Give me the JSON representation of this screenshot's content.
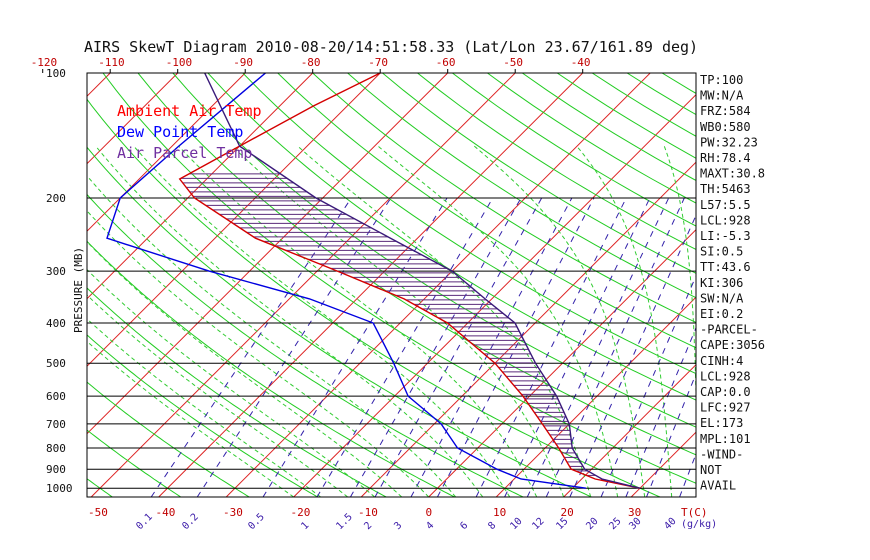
{
  "chart_data": {
    "type": "line",
    "title": "AIRS SkewT Diagram 2010-08-20/14:51:58.33 (Lat/Lon 23.67/161.89 deg)",
    "ylabel": "PRESSURE (MB)",
    "xlabel": "T(C)",
    "mixing_ratio_unit": "(g/kg)",
    "pressure_ticks": [
      100,
      200,
      300,
      400,
      500,
      600,
      700,
      800,
      900,
      1000
    ],
    "temp_ticks_top": [
      -120,
      -110,
      -100,
      -90,
      -80,
      -70,
      -60,
      -50,
      -40
    ],
    "temp_ticks_bottom": [
      -50,
      -40,
      -30,
      -20,
      -10,
      0,
      10,
      20,
      30
    ],
    "mixing_ratio_labels": [
      "0.1",
      "0.2",
      "0.5",
      "1",
      "1.5",
      "2",
      "3",
      "4",
      "6",
      "8",
      "10",
      "12",
      "15",
      "20",
      "25",
      "30",
      "40"
    ],
    "legend": [
      {
        "label": "Ambient Air Temp",
        "color": "#ff0000"
      },
      {
        "label": "Dew Point Temp",
        "color": "#0000ff"
      },
      {
        "label": "Air Parcel Temp",
        "color": "#7030a0"
      }
    ],
    "series": [
      {
        "name": "Ambient Air Temp",
        "color": "#d40000",
        "points": [
          [
            100,
            -70
          ],
          [
            120,
            -75
          ],
          [
            150,
            -80
          ],
          [
            180,
            -84
          ],
          [
            200,
            -79
          ],
          [
            250,
            -64
          ],
          [
            300,
            -47
          ],
          [
            350,
            -33
          ],
          [
            400,
            -23
          ],
          [
            500,
            -10
          ],
          [
            600,
            -1
          ],
          [
            700,
            6
          ],
          [
            800,
            12
          ],
          [
            900,
            17
          ],
          [
            950,
            22
          ],
          [
            1000,
            30
          ]
        ]
      },
      {
        "name": "Dew Point Temp",
        "color": "#0000e0",
        "points": [
          [
            100,
            -87
          ],
          [
            150,
            -89
          ],
          [
            200,
            -90
          ],
          [
            250,
            -86
          ],
          [
            300,
            -66
          ],
          [
            350,
            -47
          ],
          [
            400,
            -34
          ],
          [
            500,
            -25
          ],
          [
            600,
            -18
          ],
          [
            700,
            -9
          ],
          [
            800,
            -3
          ],
          [
            900,
            6
          ],
          [
            950,
            11
          ],
          [
            1000,
            22
          ]
        ]
      },
      {
        "name": "Air Parcel Temp",
        "color": "#3a1a7a",
        "points": [
          [
            100,
            -96
          ],
          [
            150,
            -80
          ],
          [
            200,
            -61
          ],
          [
            250,
            -44
          ],
          [
            300,
            -30
          ],
          [
            350,
            -21
          ],
          [
            400,
            -13
          ],
          [
            500,
            -4
          ],
          [
            600,
            4
          ],
          [
            700,
            10
          ],
          [
            800,
            14
          ],
          [
            900,
            19
          ],
          [
            950,
            23
          ],
          [
            1000,
            30
          ]
        ]
      }
    ],
    "indices": [
      "TP:100",
      "MW:N/A",
      "FRZ:584",
      "WB0:580",
      "PW:32.23",
      "RH:78.4",
      "MAXT:30.8",
      "TH:5463",
      "L57:5.5",
      "LCL:928",
      "LI:-5.3",
      "SI:0.5",
      "TT:43.6",
      "KI:306",
      "SW:N/A",
      "EI:0.2",
      "-PARCEL-",
      "CAPE:3056",
      "CINH:4",
      "LCL:928",
      "CAP:0.0",
      "LFC:927",
      "EL:173",
      "MPL:101",
      "-WIND-",
      "NOT",
      "AVAIL"
    ],
    "colors": {
      "isotherm": "#dd2222",
      "dry_adiabat": "#22cc22",
      "moist_adiabat": "#33cc33",
      "mixing_ratio": "#3322aa",
      "isobar": "#000000"
    }
  }
}
